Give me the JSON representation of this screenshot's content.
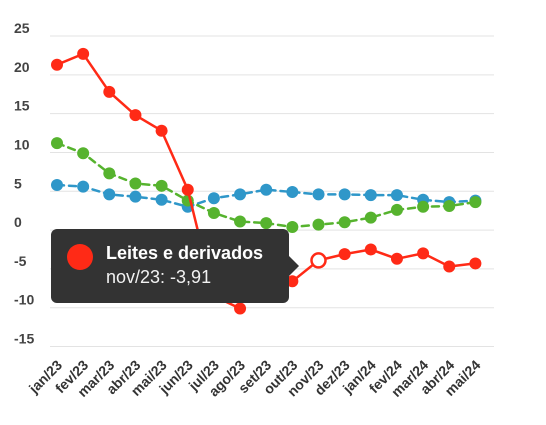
{
  "chart_data": {
    "type": "line",
    "categories": [
      "jan/23",
      "fev/23",
      "mar/23",
      "abr/23",
      "mai/23",
      "jun/23",
      "jul/23",
      "ago/23",
      "set/23",
      "out/23",
      "nov/23",
      "dez/23",
      "jan/24",
      "fev/24",
      "mar/24",
      "abr/24",
      "mai/24"
    ],
    "ylim": [
      -17,
      28
    ],
    "yticks": [
      25,
      20,
      15,
      10,
      5,
      0,
      -5,
      -10,
      -15
    ],
    "grid": true,
    "series": [
      {
        "name": "Leites e derivados",
        "color": "#ff2a16",
        "style": "solid",
        "values": [
          21.3,
          22.7,
          17.8,
          14.8,
          12.8,
          5.2,
          -8.5,
          -10.1,
          null,
          -6.6,
          -3.91,
          -3.1,
          -2.5,
          -3.7,
          -3.0,
          -4.7,
          -4.3
        ]
      },
      {
        "name": "",
        "color": "#56b32e",
        "style": "dashed",
        "values": [
          11.2,
          9.9,
          7.3,
          6.0,
          5.7,
          3.8,
          2.2,
          1.1,
          0.9,
          0.4,
          0.7,
          1.0,
          1.6,
          2.6,
          3.0,
          3.1,
          3.6
        ]
      },
      {
        "name": "",
        "color": "#2f97c9",
        "style": "dashed",
        "values": [
          5.8,
          5.6,
          4.6,
          4.3,
          3.9,
          3.0,
          4.1,
          4.6,
          5.2,
          4.9,
          4.6,
          4.6,
          4.5,
          4.5,
          3.9,
          3.6,
          3.8
        ]
      }
    ]
  },
  "tooltip": {
    "title": "Leites e derivados",
    "value": "nov/23: -3,91",
    "dot_color": "#ff2a16",
    "highlight_index": 10
  }
}
